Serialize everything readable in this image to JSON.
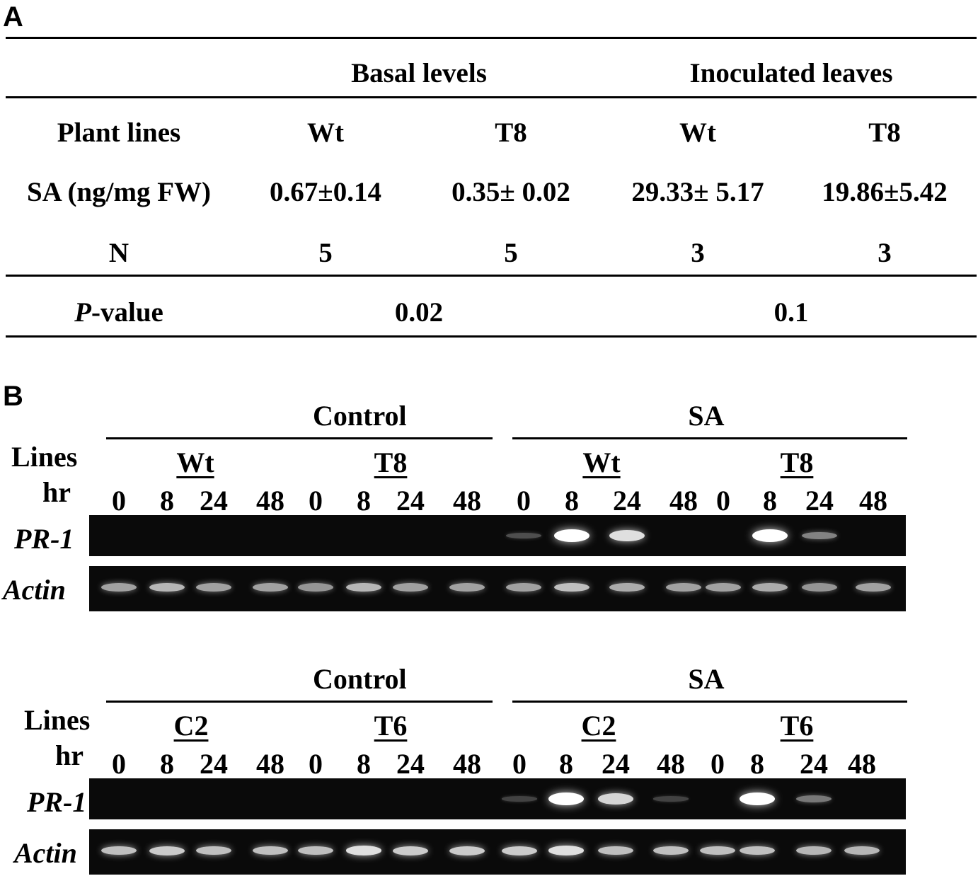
{
  "panel_a": {
    "label": "A",
    "group_headers": [
      "Basal levels",
      "Inoculated leaves"
    ],
    "columns": [
      "Plant lines",
      "Wt",
      "T8",
      "Wt",
      "T8"
    ],
    "rows": [
      {
        "label": "SA (ng/mg FW)",
        "values": [
          "0.67±0.14",
          "0.35± 0.02",
          "29.33± 5.17",
          "19.86±5.42"
        ]
      },
      {
        "label": "N",
        "values": [
          "5",
          "5",
          "3",
          "3"
        ]
      }
    ],
    "pvalue": {
      "label_italic": "P",
      "label_rest": "-value",
      "values": [
        "0.02",
        "0.1"
      ]
    }
  },
  "panel_b": {
    "label": "B",
    "gels": [
      {
        "treatments": [
          "Control",
          "SA"
        ],
        "lines": [
          "Wt",
          "T8",
          "Wt",
          "T8"
        ],
        "lines_label": "Lines",
        "hr_label": "hr",
        "timepoints": [
          "0",
          "8",
          "24",
          "48",
          "0",
          "8",
          "24",
          "48",
          "0",
          "8",
          "24",
          "48",
          "0",
          "8",
          "24",
          "48"
        ],
        "genes": [
          "PR-1",
          "Actin"
        ],
        "pr1_intensity": [
          0,
          0,
          0,
          0,
          0,
          0,
          0,
          0,
          0.15,
          1.0,
          0.85,
          0,
          0,
          1.0,
          0.4,
          0
        ],
        "actin_intensity": [
          0.55,
          0.65,
          0.55,
          0.55,
          0.5,
          0.65,
          0.55,
          0.55,
          0.55,
          0.7,
          0.6,
          0.55,
          0.55,
          0.6,
          0.5,
          0.55
        ]
      },
      {
        "treatments": [
          "Control",
          "SA"
        ],
        "lines": [
          "C2",
          "T6",
          "C2",
          "T6"
        ],
        "lines_label": "Lines",
        "hr_label": "hr",
        "timepoints": [
          "0",
          "8",
          "24",
          "48",
          "0",
          "8",
          "24",
          "48",
          "0",
          "8",
          "24",
          "48",
          "0",
          "8",
          "24",
          "48"
        ],
        "genes": [
          "PR-1",
          "Actin"
        ],
        "pr1_intensity": [
          0,
          0,
          0,
          0,
          0,
          0,
          0,
          0,
          0.1,
          1.0,
          0.8,
          0.1,
          0,
          1.0,
          0.35,
          0
        ],
        "actin_intensity": [
          0.7,
          0.75,
          0.7,
          0.7,
          0.7,
          0.85,
          0.75,
          0.75,
          0.75,
          0.85,
          0.7,
          0.7,
          0.7,
          0.7,
          0.65,
          0.65
        ]
      }
    ]
  }
}
